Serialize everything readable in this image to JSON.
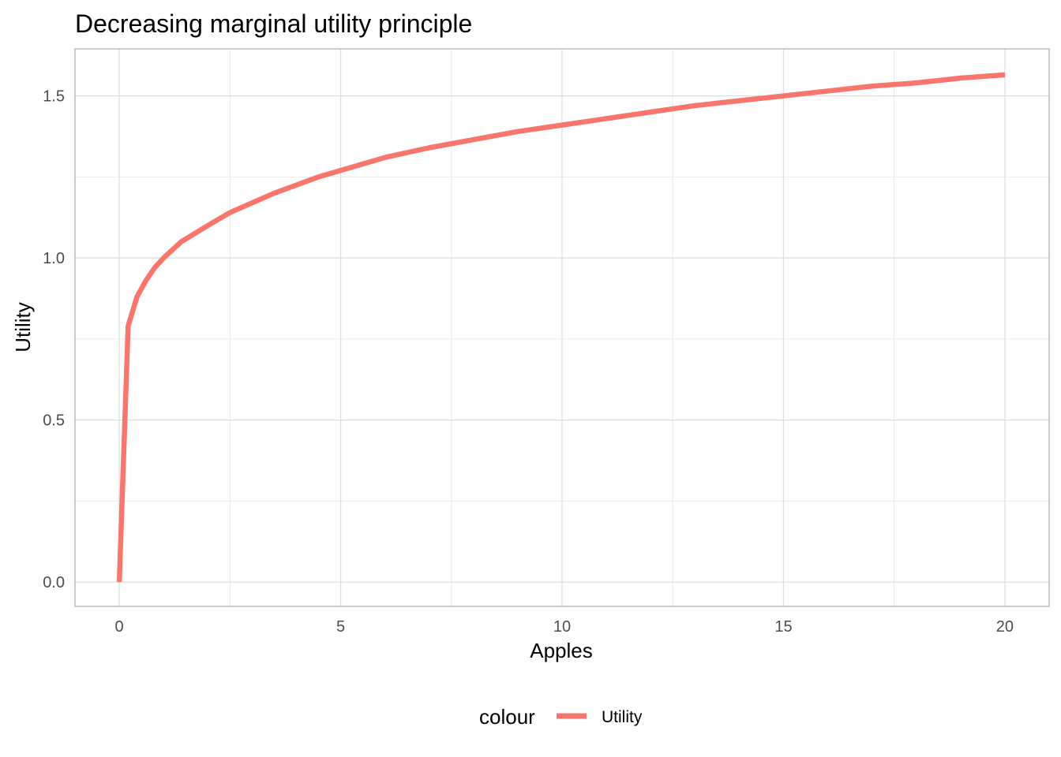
{
  "chart_data": {
    "type": "line",
    "title": "Decreasing marginal utility principle",
    "xlabel": "Apples",
    "ylabel": "Utility",
    "xlim": [
      -1,
      21
    ],
    "ylim": [
      -0.075,
      1.645
    ],
    "x_ticks": [
      0,
      5,
      10,
      15,
      20
    ],
    "x_tick_labels": [
      "0",
      "5",
      "10",
      "15",
      "20"
    ],
    "y_ticks": [
      0,
      0.5,
      1,
      1.5
    ],
    "y_tick_labels": [
      "0.0",
      "0.5",
      "1.0",
      "1.5"
    ],
    "x_minor_ticks": [
      2.5,
      7.5,
      12.5,
      17.5
    ],
    "y_minor_ticks": [
      0.25,
      0.75,
      1.25
    ],
    "grid": true,
    "legend_position": "bottom",
    "legend_title": "colour",
    "series": [
      {
        "name": "Utility",
        "color": "#F8766D",
        "x": [
          0,
          0.2,
          0.4,
          0.6,
          0.8,
          1,
          1.4,
          2,
          2.5,
          3,
          3.5,
          4,
          4.5,
          5,
          6,
          7,
          8,
          9,
          10,
          11,
          12,
          13,
          14,
          15,
          16,
          17,
          18,
          19,
          20
        ],
        "y": [
          0,
          0.79,
          0.88,
          0.93,
          0.97,
          1.0,
          1.05,
          1.1,
          1.14,
          1.17,
          1.2,
          1.225,
          1.25,
          1.27,
          1.31,
          1.34,
          1.365,
          1.39,
          1.41,
          1.43,
          1.45,
          1.47,
          1.485,
          1.5,
          1.515,
          1.53,
          1.54,
          1.555,
          1.565
        ]
      }
    ]
  }
}
